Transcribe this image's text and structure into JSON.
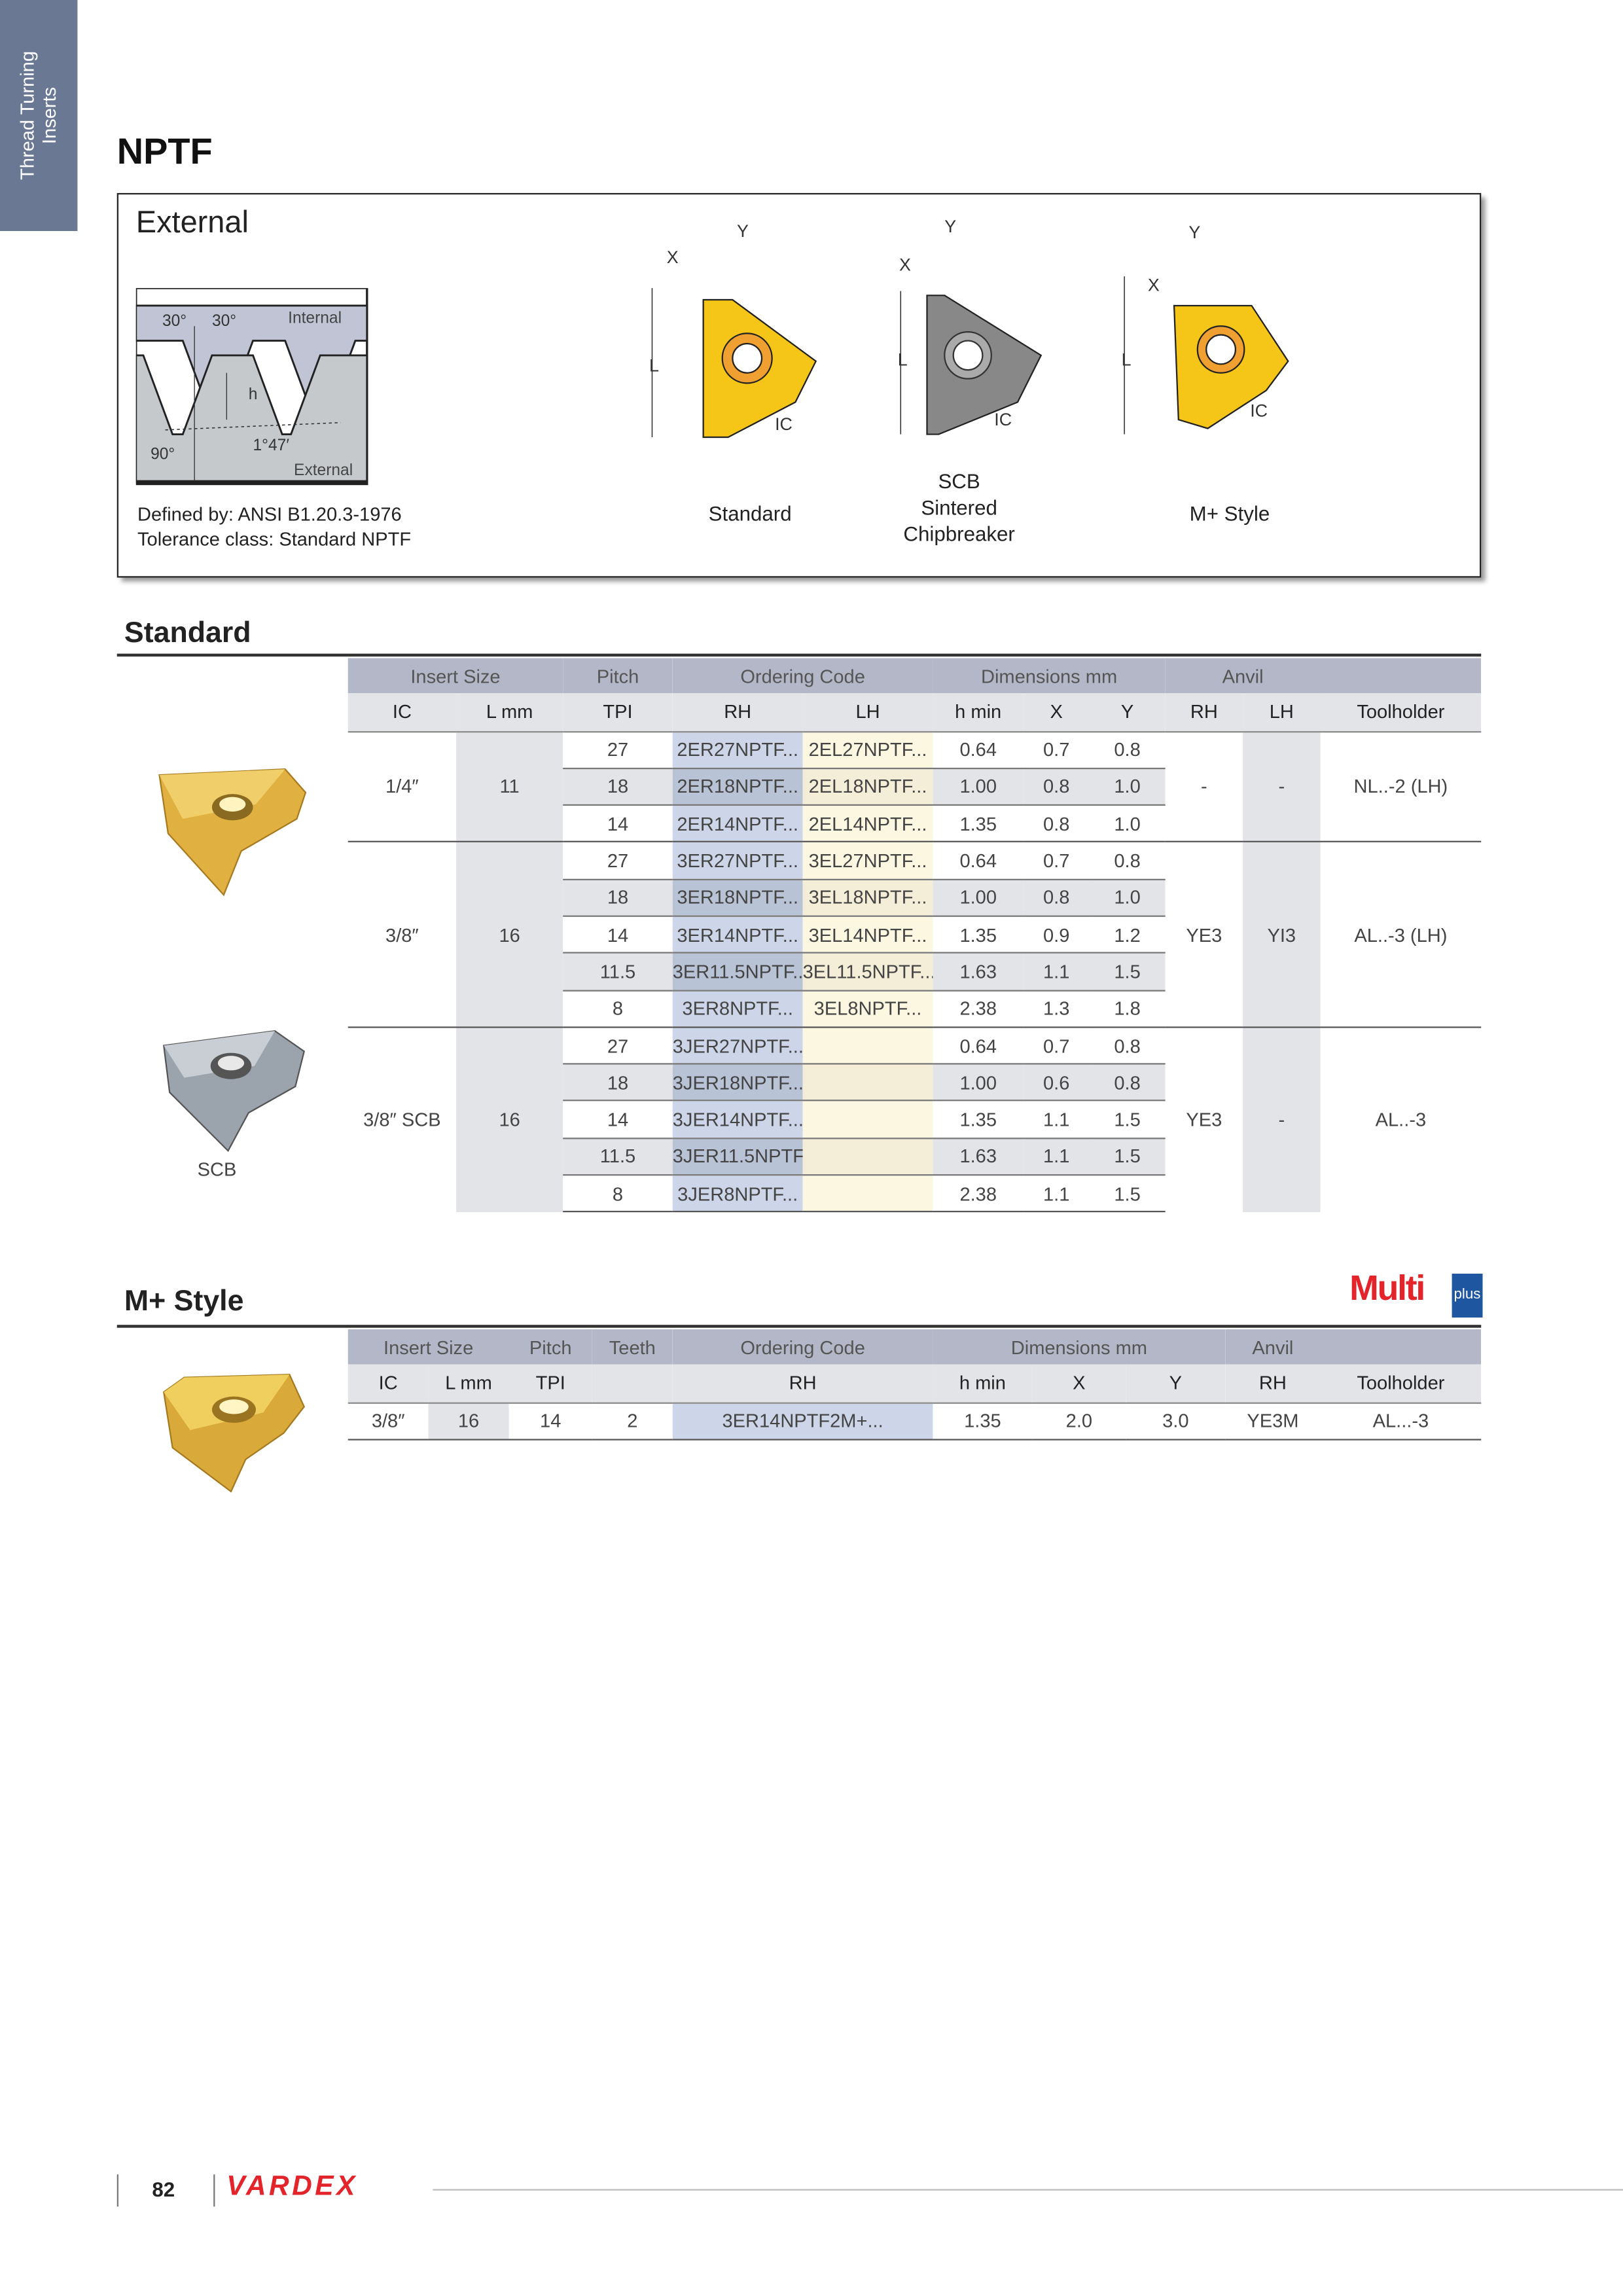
{
  "side_tab": {
    "line1": "Thread Turning",
    "line2": "Inserts"
  },
  "title": "NPTF",
  "overview": {
    "heading": "External",
    "thread_profile": {
      "angle_left": "30°",
      "angle_right": "30°",
      "internal": "Internal",
      "h": "h",
      "angle_90": "90°",
      "taper": "1°47′",
      "external": "External"
    },
    "defined_by": "Defined by: ANSI B1.20.3-1976",
    "tolerance": "Tolerance class: Standard NPTF",
    "dim_labels": {
      "x": "X",
      "y": "Y",
      "l": "L",
      "ic": "IC"
    },
    "types": [
      {
        "label": "Standard"
      },
      {
        "label1": "SCB",
        "label2": "Sintered",
        "label3": "Chipbreaker"
      },
      {
        "label": "M+ Style"
      }
    ]
  },
  "standard": {
    "heading": "Standard",
    "scb_caption": "SCB",
    "header1": [
      "Insert Size",
      "Pitch",
      "Ordering Code",
      "Dimensions mm",
      "Anvil"
    ],
    "header2": [
      "IC",
      "L mm",
      "TPI",
      "RH",
      "LH",
      "h min",
      "X",
      "Y",
      "RH",
      "LH",
      "Toolholder"
    ],
    "groups": [
      {
        "ic": "1/4″",
        "l": "11",
        "anvil_rh": "-",
        "anvil_lh": "-",
        "toolholder": "NL..-2 (LH)",
        "rows": [
          {
            "tpi": "27",
            "rh": "2ER27NPTF...",
            "lh": "2EL27NPTF...",
            "h": "0.64",
            "x": "0.7",
            "y": "0.8"
          },
          {
            "tpi": "18",
            "rh": "2ER18NPTF...",
            "lh": "2EL18NPTF...",
            "h": "1.00",
            "x": "0.8",
            "y": "1.0"
          },
          {
            "tpi": "14",
            "rh": "2ER14NPTF...",
            "lh": "2EL14NPTF...",
            "h": "1.35",
            "x": "0.8",
            "y": "1.0"
          }
        ]
      },
      {
        "ic": "3/8″",
        "l": "16",
        "anvil_rh": "YE3",
        "anvil_lh": "YI3",
        "toolholder": "AL..-3 (LH)",
        "rows": [
          {
            "tpi": "27",
            "rh": "3ER27NPTF...",
            "lh": "3EL27NPTF...",
            "h": "0.64",
            "x": "0.7",
            "y": "0.8"
          },
          {
            "tpi": "18",
            "rh": "3ER18NPTF...",
            "lh": "3EL18NPTF...",
            "h": "1.00",
            "x": "0.8",
            "y": "1.0"
          },
          {
            "tpi": "14",
            "rh": "3ER14NPTF...",
            "lh": "3EL14NPTF...",
            "h": "1.35",
            "x": "0.9",
            "y": "1.2"
          },
          {
            "tpi": "11.5",
            "rh": "3ER11.5NPTF...",
            "lh": "3EL11.5NPTF...",
            "h": "1.63",
            "x": "1.1",
            "y": "1.5"
          },
          {
            "tpi": "8",
            "rh": "3ER8NPTF...",
            "lh": "3EL8NPTF...",
            "h": "2.38",
            "x": "1.3",
            "y": "1.8"
          }
        ]
      },
      {
        "ic": "3/8″ SCB",
        "l": "16",
        "anvil_rh": "YE3",
        "anvil_lh": "-",
        "toolholder": "AL..-3",
        "rows": [
          {
            "tpi": "27",
            "rh": "3JER27NPTF...",
            "lh": "",
            "h": "0.64",
            "x": "0.7",
            "y": "0.8"
          },
          {
            "tpi": "18",
            "rh": "3JER18NPTF...",
            "lh": "",
            "h": "1.00",
            "x": "0.6",
            "y": "0.8"
          },
          {
            "tpi": "14",
            "rh": "3JER14NPTF...",
            "lh": "",
            "h": "1.35",
            "x": "1.1",
            "y": "1.5"
          },
          {
            "tpi": "11.5",
            "rh": "3JER11.5NPTF...",
            "lh": "",
            "h": "1.63",
            "x": "1.1",
            "y": "1.5"
          },
          {
            "tpi": "8",
            "rh": "3JER8NPTF...",
            "lh": "",
            "h": "2.38",
            "x": "1.1",
            "y": "1.5"
          }
        ]
      }
    ]
  },
  "mplus": {
    "heading": "M+ Style",
    "logo_text": "Multi",
    "logo_sub": "plus",
    "header1": [
      "Insert Size",
      "Pitch",
      "Teeth",
      "Ordering Code",
      "Dimensions mm",
      "Anvil"
    ],
    "header2": [
      "IC",
      "L mm",
      "TPI",
      "",
      "RH",
      "h min",
      "X",
      "Y",
      "RH",
      "Toolholder"
    ],
    "row": {
      "ic": "3/8″",
      "l": "16",
      "tpi": "14",
      "teeth": "2",
      "rh": "3ER14NPTF2M+...",
      "h": "1.35",
      "x": "2.0",
      "y": "3.0",
      "anvil": "YE3M",
      "toolholder": "AL...-3"
    }
  },
  "footer": {
    "page": "82",
    "brand": "VARDEX"
  },
  "colors": {
    "side_tab": "#6b7894",
    "header": "#b4b7c7",
    "rh_col": "#cdd6e8",
    "lh_col": "#fbf7e0",
    "gold": "#f5c518",
    "brand_red": "#e3242b",
    "logo_blue": "#1e56a0"
  }
}
